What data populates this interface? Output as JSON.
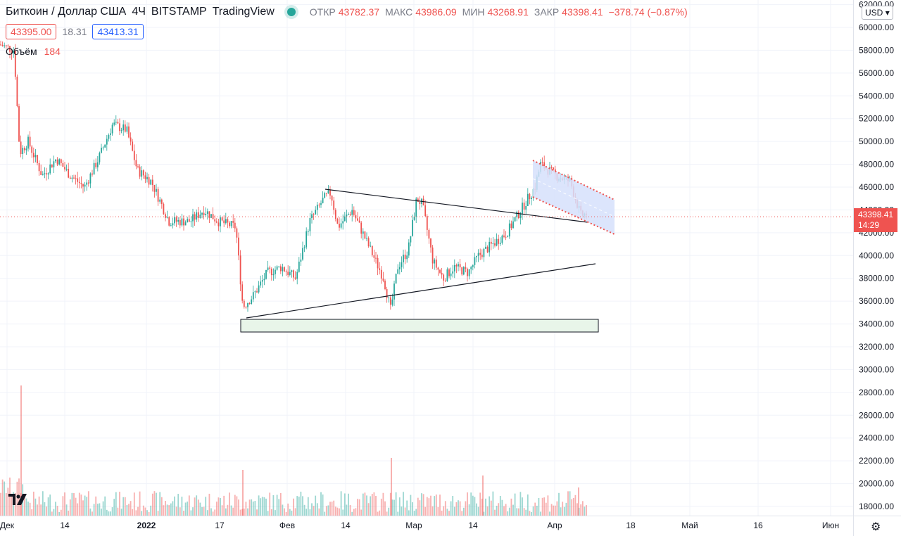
{
  "header": {
    "symbol": "Биткоин / Доллар США",
    "interval": "4Ч",
    "exchange": "BITSTAMP",
    "brand": "TradingView",
    "open_label": "ОТКР",
    "open": "43782.37",
    "high_label": "МАКС",
    "high": "43986.09",
    "low_label": "МИН",
    "low": "43268.91",
    "close_label": "ЗАКР",
    "close": "43398.41",
    "change": "−378.74 (−0.87%)"
  },
  "trade": {
    "sell": "43395.00",
    "spread": "18.31",
    "buy": "43413.31"
  },
  "volume": {
    "label": "Объём",
    "value": "184"
  },
  "currency": "USD",
  "price_label": {
    "price": "43398.41",
    "countdown": "14:29"
  },
  "y_axis_labels": [
    "62000.00",
    "60000.00",
    "58000.00",
    "56000.00",
    "54000.00",
    "52000.00",
    "50000.00",
    "48000.00",
    "46000.00",
    "44000.00",
    "42000.00",
    "40000.00",
    "38000.00",
    "36000.00",
    "34000.00",
    "32000.00",
    "30000.00",
    "28000.00",
    "26000.00",
    "24000.00",
    "22000.00",
    "20000.00",
    "18000.00"
  ],
  "x_axis_labels": [
    "Дек",
    "14",
    "2022",
    "17",
    "Фев",
    "14",
    "Мар",
    "14",
    "Апр",
    "18",
    "Май",
    "16",
    "Июн"
  ],
  "x_axis_bold": [
    "2022"
  ],
  "icons": {
    "settings": "gear-icon",
    "logo": "tradingview-logo-icon"
  },
  "colors": {
    "up": "#26a69a",
    "down": "#ef5350",
    "accent": "#2962ff",
    "zone_fill": "#e8f5e9",
    "channel_fill": "#d6e0fb"
  }
}
